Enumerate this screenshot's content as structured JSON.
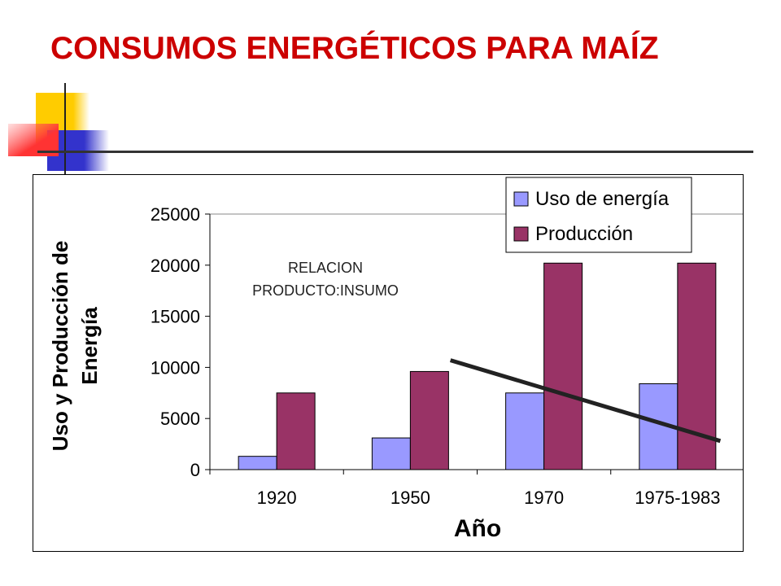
{
  "slide": {
    "title": "CONSUMOS ENERGÉTICOS PARA MAÍZ"
  },
  "colors": {
    "title": "#cc0000",
    "uso_bar": "#9999ff",
    "produccion_bar": "#993366",
    "deco_yellow": "#ffcc00",
    "deco_blue": "#3333cc",
    "deco_red": "#ff3333"
  },
  "chart_data": {
    "type": "bar",
    "title": "",
    "xlabel": "Año",
    "ylabel": "Uso y Producción de Energía",
    "ylabel_lines": [
      "Uso y Producción de",
      "Energía"
    ],
    "categories": [
      "1920",
      "1950",
      "1970",
      "1975-1983"
    ],
    "series": [
      {
        "name": "Uso de energía",
        "color": "#9999ff",
        "values": [
          1300,
          3100,
          7500,
          8400
        ]
      },
      {
        "name": "Producción",
        "color": "#993366",
        "values": [
          7500,
          9600,
          20200,
          20200
        ]
      }
    ],
    "ylim": [
      0,
      25000
    ],
    "yticks": [
      0,
      5000,
      10000,
      15000,
      20000,
      25000
    ],
    "legend_position": "top-right",
    "grid": false,
    "annotation": {
      "lines": [
        "RELACION",
        "PRODUCTO:INSUMO"
      ],
      "trend_line": {
        "from": {
          "x": "1950",
          "y": 10700
        },
        "to": {
          "x": "1975-1983",
          "y": 2800
        }
      }
    }
  }
}
